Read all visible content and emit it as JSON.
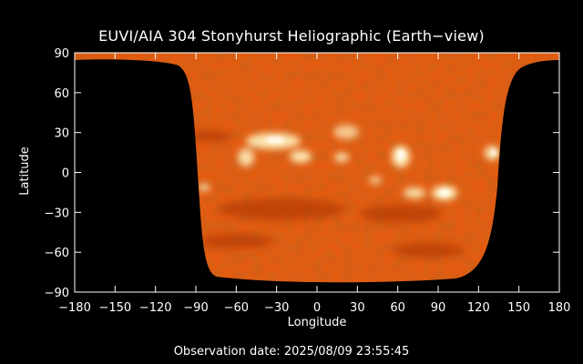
{
  "title": "EUVI/AIA 304 Stonyhurst Heliographic (Earth−view)",
  "observation": "Observation date: 2025/08/09 23:55:45",
  "axes": {
    "xlabel": "Longitude",
    "ylabel": "Latitude",
    "xlim": [
      -180,
      180
    ],
    "ylim": [
      -90,
      90
    ],
    "xticks": [
      "−180",
      "−150",
      "−120",
      "−90",
      "−60",
      "−30",
      "0",
      "30",
      "60",
      "90",
      "120",
      "150",
      "180"
    ],
    "xtick_values": [
      -180,
      -150,
      -120,
      -90,
      -60,
      -30,
      0,
      30,
      60,
      90,
      120,
      150,
      180
    ],
    "yticks": [
      "90",
      "60",
      "30",
      "0",
      "−30",
      "−60",
      "−90"
    ],
    "ytick_values": [
      90,
      60,
      30,
      0,
      -30,
      -60,
      -90
    ]
  },
  "colors": {
    "background": "#000000",
    "sun_base": "#e25a10",
    "sun_dark": "#b83a05",
    "sun_bright": "#fff1c8"
  }
}
